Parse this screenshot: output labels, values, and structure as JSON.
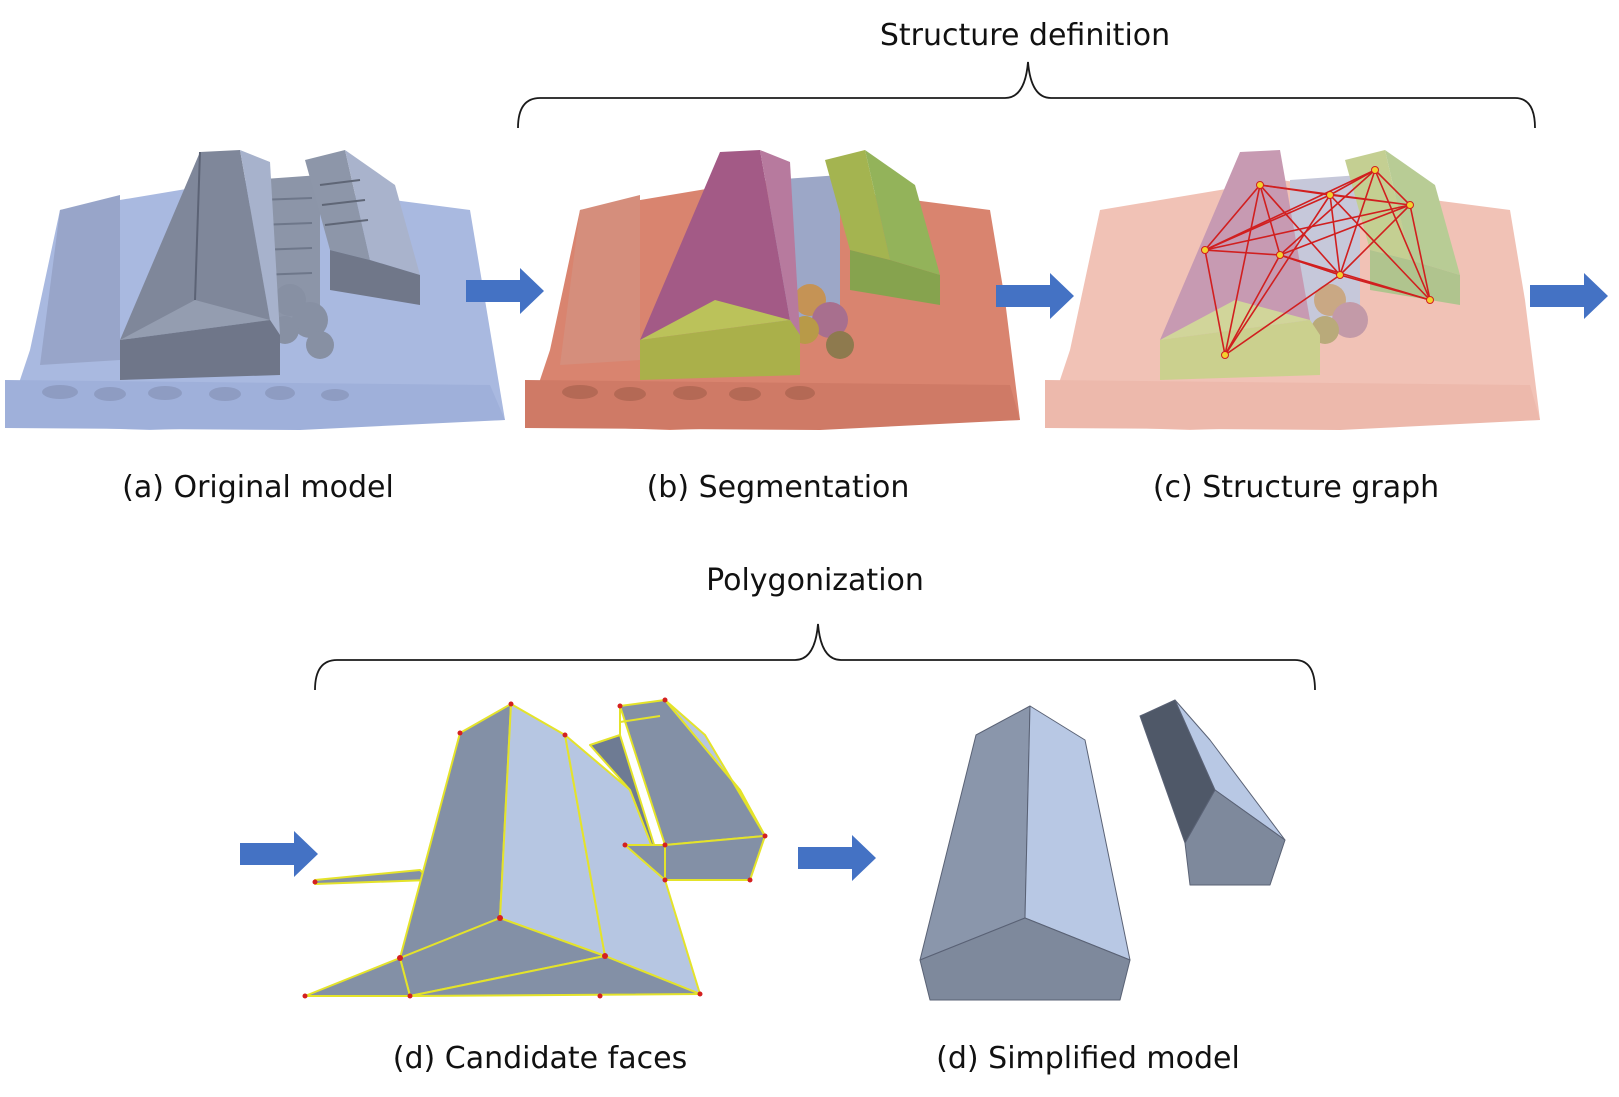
{
  "brackets": {
    "structure_definition": "Structure definition",
    "polygonization": "Polygonization"
  },
  "panels": {
    "a": "(a) Original model",
    "b": "(b) Segmentation",
    "c": "(c) Structure graph",
    "d1": "(d) Candidate faces",
    "d2": "(d) Simplified model"
  },
  "colors": {
    "arrow": "#4472C4",
    "mesh_base": "#A9B9E0",
    "mesh_dark": "#8A93A8",
    "seg_ground": "#D9846F",
    "seg_roof": "#A35A86",
    "seg_wall": "#AAB04A",
    "seg_green": "#93B35A",
    "graph_edge": "#D11F1F",
    "graph_node": "#F2D22E",
    "face_light": "#B6C6E2",
    "face_dark": "#8390A6",
    "face_edge": "#E4E32A",
    "face_vertex": "#D42020"
  }
}
